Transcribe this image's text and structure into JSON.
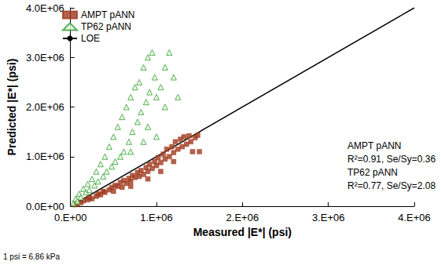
{
  "chart_data": {
    "type": "scatter",
    "x_label": "Measured |E*| (psi)",
    "y_label": "Predicted |E*| (psi)",
    "xlim": [
      0,
      4000000
    ],
    "ylim": [
      0,
      4000000
    ],
    "xticks": [
      {
        "value": 0,
        "label": "0.E+00"
      },
      {
        "value": 1000000,
        "label": "1.E+06"
      },
      {
        "value": 2000000,
        "label": "2.E+06"
      },
      {
        "value": 3000000,
        "label": "3.E+06"
      },
      {
        "value": 4000000,
        "label": "4.E+06"
      }
    ],
    "yticks": [
      {
        "value": 0,
        "label": "0.0E+00"
      },
      {
        "value": 1000000,
        "label": "1.0E+06"
      },
      {
        "value": 2000000,
        "label": "2.0E+06"
      },
      {
        "value": 3000000,
        "label": "3.0E+06"
      },
      {
        "value": 4000000,
        "label": "4.0E+06"
      }
    ],
    "grid": false,
    "legend": "top-left",
    "series": [
      {
        "name": "AMPT pANN",
        "type": "scatter",
        "marker": "square",
        "color": "#A0391E",
        "x": [
          50000,
          80000,
          120000,
          150000,
          200000,
          220000,
          250000,
          300000,
          320000,
          350000,
          380000,
          400000,
          450000,
          480000,
          500000,
          520000,
          550000,
          580000,
          600000,
          620000,
          650000,
          680000,
          700000,
          720000,
          750000,
          780000,
          800000,
          820000,
          850000,
          880000,
          900000,
          920000,
          950000,
          980000,
          1000000,
          1020000,
          1050000,
          1080000,
          1100000,
          1120000,
          1150000,
          1180000,
          1200000,
          1220000,
          1250000,
          1280000,
          1300000,
          1320000,
          1350000,
          1380000,
          1400000,
          1420000,
          1450000,
          1480000,
          1500000,
          1050000,
          900000,
          700000,
          1200000
        ],
        "values": [
          30000,
          50000,
          70000,
          110000,
          130000,
          170000,
          150000,
          200000,
          250000,
          230000,
          300000,
          280000,
          330000,
          380000,
          300000,
          420000,
          400000,
          480000,
          380000,
          520000,
          460000,
          560000,
          500000,
          620000,
          580000,
          680000,
          600000,
          720000,
          640000,
          780000,
          700000,
          850000,
          760000,
          900000,
          820000,
          980000,
          880000,
          1050000,
          950000,
          1150000,
          1000000,
          1200000,
          1080000,
          1300000,
          1150000,
          1350000,
          1200000,
          1400000,
          1250000,
          1420000,
          1300000,
          1100000,
          1380000,
          1430000,
          1100000,
          700000,
          550000,
          400000,
          900000
        ]
      },
      {
        "name": "TP62 pANN",
        "type": "scatter",
        "marker": "triangle",
        "color": "#339933",
        "x": [
          30000,
          60000,
          80000,
          100000,
          120000,
          150000,
          180000,
          200000,
          220000,
          250000,
          280000,
          300000,
          320000,
          350000,
          380000,
          400000,
          420000,
          450000,
          480000,
          500000,
          520000,
          550000,
          580000,
          600000,
          620000,
          650000,
          680000,
          700000,
          720000,
          750000,
          780000,
          800000,
          820000,
          850000,
          880000,
          900000,
          920000,
          950000,
          980000,
          1000000,
          1050000,
          1100000,
          1150000,
          1200000,
          1250000,
          1000000,
          850000,
          700000,
          1100000,
          900000
        ],
        "values": [
          60000,
          150000,
          100000,
          250000,
          180000,
          350000,
          280000,
          450000,
          330000,
          550000,
          420000,
          700000,
          500000,
          850000,
          600000,
          1000000,
          700000,
          1200000,
          800000,
          1400000,
          900000,
          1600000,
          1000000,
          1800000,
          1100000,
          2000000,
          1300000,
          2200000,
          1500000,
          2400000,
          1700000,
          2500000,
          1900000,
          2800000,
          2100000,
          3000000,
          2300000,
          3100000,
          2600000,
          2200000,
          2400000,
          2800000,
          3100000,
          2600000,
          2200000,
          1400000,
          1300000,
          1100000,
          2000000,
          1600000
        ]
      },
      {
        "name": "LOE",
        "type": "line",
        "line_style": "solid",
        "color": "#000000",
        "x": [
          0,
          4000000
        ],
        "values": [
          0,
          4000000
        ]
      }
    ],
    "annotations": [
      "AMPT pANN",
      "R²=0.91, Se/Sy=0.36",
      "TP62 pANN",
      "R²=0.77, Se/Sy=2.08"
    ],
    "note": "1 psi = 6.86 kPa"
  }
}
